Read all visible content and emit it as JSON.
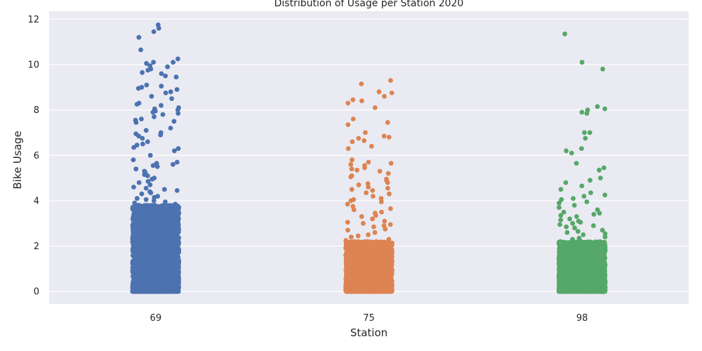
{
  "chart_data": {
    "type": "scatter",
    "subtype": "strip",
    "title": "Distribution of Usage per Station 2020",
    "xlabel": "Station",
    "ylabel": "Bike Usage",
    "categories": [
      "69",
      "75",
      "98"
    ],
    "ylim": [
      -0.55,
      12.35
    ],
    "yticks": [
      0,
      2,
      4,
      6,
      8,
      10,
      12
    ],
    "ytick_labels": [
      "0",
      "2",
      "4",
      "6",
      "8",
      "10",
      "12"
    ],
    "grid": true,
    "legend": "none",
    "colors": {
      "background": "#eaeaf2",
      "grid": "#ffffff",
      "text": "#262626"
    },
    "series": [
      {
        "category": "69",
        "color": "#4c72b0",
        "values": [
          11.75,
          11.6,
          11.45,
          11.2,
          10.65,
          10.25,
          10.1,
          10.1,
          10.05,
          9.95,
          9.9,
          9.8,
          9.75,
          9.65,
          9.6,
          9.5,
          9.45,
          9.1,
          9.05,
          9.0,
          8.95,
          8.9,
          8.8,
          8.75,
          8.6,
          8.5,
          8.3,
          8.25,
          8.2,
          8.1,
          8.05,
          8.0,
          7.95,
          7.9,
          7.85,
          7.8,
          7.7,
          7.6,
          7.55,
          7.5,
          7.45,
          7.2,
          7.1,
          7.0,
          6.95,
          6.9,
          6.85,
          6.75,
          6.6,
          6.5,
          6.45,
          6.35,
          6.3,
          6.2,
          6.0,
          5.8,
          5.7,
          5.65,
          5.6,
          5.55,
          5.5,
          5.4,
          5.3,
          5.25,
          5.15,
          5.1,
          5.0,
          4.95,
          4.85,
          4.8,
          4.7,
          4.6,
          4.55,
          4.5,
          4.45,
          4.4,
          4.35,
          4.3,
          4.2,
          4.15,
          4.1,
          4.05,
          4.0,
          3.95,
          3.9,
          3.85,
          3.8
        ],
        "dense_band": [
          0,
          3.8
        ]
      },
      {
        "category": "75",
        "color": "#dd8452",
        "values": [
          9.3,
          9.15,
          8.8,
          8.75,
          8.6,
          8.45,
          8.4,
          8.3,
          8.1,
          7.6,
          7.45,
          7.35,
          7.0,
          6.85,
          6.8,
          6.75,
          6.65,
          6.6,
          6.4,
          6.3,
          5.8,
          5.7,
          5.65,
          5.6,
          5.55,
          5.45,
          5.4,
          5.35,
          5.3,
          5.2,
          5.1,
          5.05,
          4.95,
          4.9,
          4.8,
          4.75,
          4.7,
          4.6,
          4.55,
          4.5,
          4.45,
          4.35,
          4.3,
          4.2,
          4.1,
          4.05,
          4.0,
          3.95,
          3.85,
          3.75,
          3.65,
          3.6,
          3.5,
          3.45,
          3.35,
          3.3,
          3.2,
          3.1,
          3.05,
          3.0,
          2.95,
          2.9,
          2.85,
          2.75,
          2.7,
          2.6,
          2.5,
          2.45,
          2.4,
          2.3,
          2.25,
          2.2
        ],
        "dense_band": [
          0,
          2.2
        ]
      },
      {
        "category": "98",
        "color": "#55a868",
        "values": [
          11.35,
          10.1,
          9.8,
          8.15,
          8.05,
          8.0,
          7.9,
          7.85,
          7.0,
          7.0,
          6.75,
          6.3,
          6.2,
          6.1,
          5.65,
          5.45,
          5.35,
          5.0,
          4.9,
          4.8,
          4.65,
          4.5,
          4.35,
          4.25,
          4.2,
          4.1,
          4.05,
          3.95,
          3.9,
          3.8,
          3.7,
          3.6,
          3.5,
          3.45,
          3.4,
          3.35,
          3.3,
          3.2,
          3.15,
          3.1,
          3.05,
          3.0,
          2.95,
          2.9,
          2.85,
          2.8,
          2.7,
          2.65,
          2.6,
          2.55,
          2.5,
          2.4,
          2.35,
          2.3
        ],
        "dense_band": [
          0,
          2.2
        ]
      }
    ]
  }
}
